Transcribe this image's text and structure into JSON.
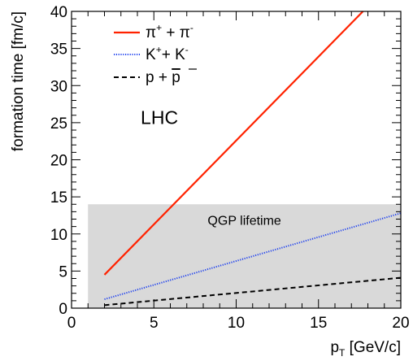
{
  "chart_data": {
    "type": "line",
    "xlabel": "p",
    "xlabel_sub": "T",
    "xlabel_unit": "[GeV/c]",
    "ylabel": "formation time [fm/c]",
    "xlim": [
      0,
      20
    ],
    "ylim": [
      0,
      40
    ],
    "xticks": [
      0,
      5,
      10,
      15,
      20
    ],
    "yticks": [
      0,
      5,
      10,
      15,
      20,
      25,
      30,
      35,
      40
    ],
    "grid": false,
    "legend_position": "top-left",
    "series": [
      {
        "name_base": "π",
        "name_sup": "+",
        "name_mid": " + π",
        "name_sup2": "-",
        "color": "#ff2200",
        "dash": "solid",
        "x": [
          2,
          17.7
        ],
        "y": [
          4.5,
          40
        ]
      },
      {
        "name_base": "K",
        "name_sup": "+",
        "name_mid": "+ K",
        "name_sup2": "-",
        "color": "#2244ee",
        "dash": "dotted",
        "x": [
          2,
          20
        ],
        "y": [
          1.2,
          12.8
        ]
      },
      {
        "name_base": "p + ",
        "name_bar": "p",
        "color": "#000000",
        "dash": "dashed",
        "x": [
          2,
          20
        ],
        "y": [
          0.4,
          4.1
        ]
      }
    ],
    "band": {
      "label": "QGP lifetime",
      "x": [
        1,
        20
      ],
      "y": [
        0,
        14
      ],
      "color": "#d9d9d9"
    },
    "annotations": [
      {
        "text": "LHC",
        "x": 4.2,
        "y": 24.8
      }
    ]
  }
}
